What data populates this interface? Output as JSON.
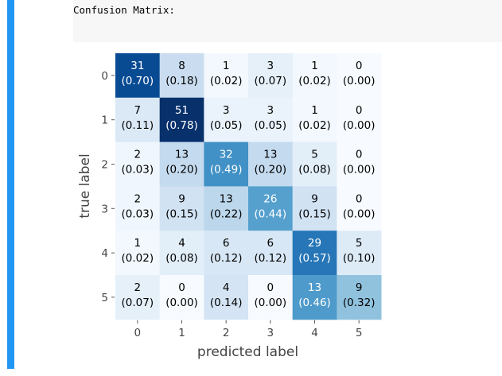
{
  "output": {
    "title": "Confusion Matrix:"
  },
  "colors": {
    "cell_bar": "#2196f3",
    "output_header_bg": "#f7f7f7",
    "colormap": "Blues"
  },
  "chart_data": {
    "type": "heatmap",
    "title": "",
    "xlabel": "predicted label",
    "ylabel": "true label",
    "x_categories": [
      "0",
      "1",
      "2",
      "3",
      "4",
      "5"
    ],
    "y_categories": [
      "0",
      "1",
      "2",
      "3",
      "4",
      "5"
    ],
    "counts": [
      [
        31,
        8,
        1,
        3,
        1,
        0
      ],
      [
        7,
        51,
        3,
        3,
        1,
        0
      ],
      [
        2,
        13,
        32,
        13,
        5,
        0
      ],
      [
        2,
        9,
        13,
        26,
        9,
        0
      ],
      [
        1,
        4,
        6,
        6,
        29,
        5
      ],
      [
        2,
        0,
        4,
        0,
        13,
        9
      ]
    ],
    "fractions": [
      [
        "(0.70)",
        "(0.18)",
        "(0.02)",
        "(0.07)",
        "(0.02)",
        "(0.00)"
      ],
      [
        "(0.11)",
        "(0.78)",
        "(0.05)",
        "(0.05)",
        "(0.02)",
        "(0.00)"
      ],
      [
        "(0.03)",
        "(0.20)",
        "(0.49)",
        "(0.20)",
        "(0.08)",
        "(0.00)"
      ],
      [
        "(0.03)",
        "(0.15)",
        "(0.22)",
        "(0.44)",
        "(0.15)",
        "(0.00)"
      ],
      [
        "(0.02)",
        "(0.08)",
        "(0.12)",
        "(0.12)",
        "(0.57)",
        "(0.10)"
      ],
      [
        "(0.07)",
        "(0.00)",
        "(0.14)",
        "(0.00)",
        "(0.46)",
        "(0.32)"
      ]
    ],
    "color_scale_max": 0.78,
    "grid": false,
    "legend": "none"
  }
}
